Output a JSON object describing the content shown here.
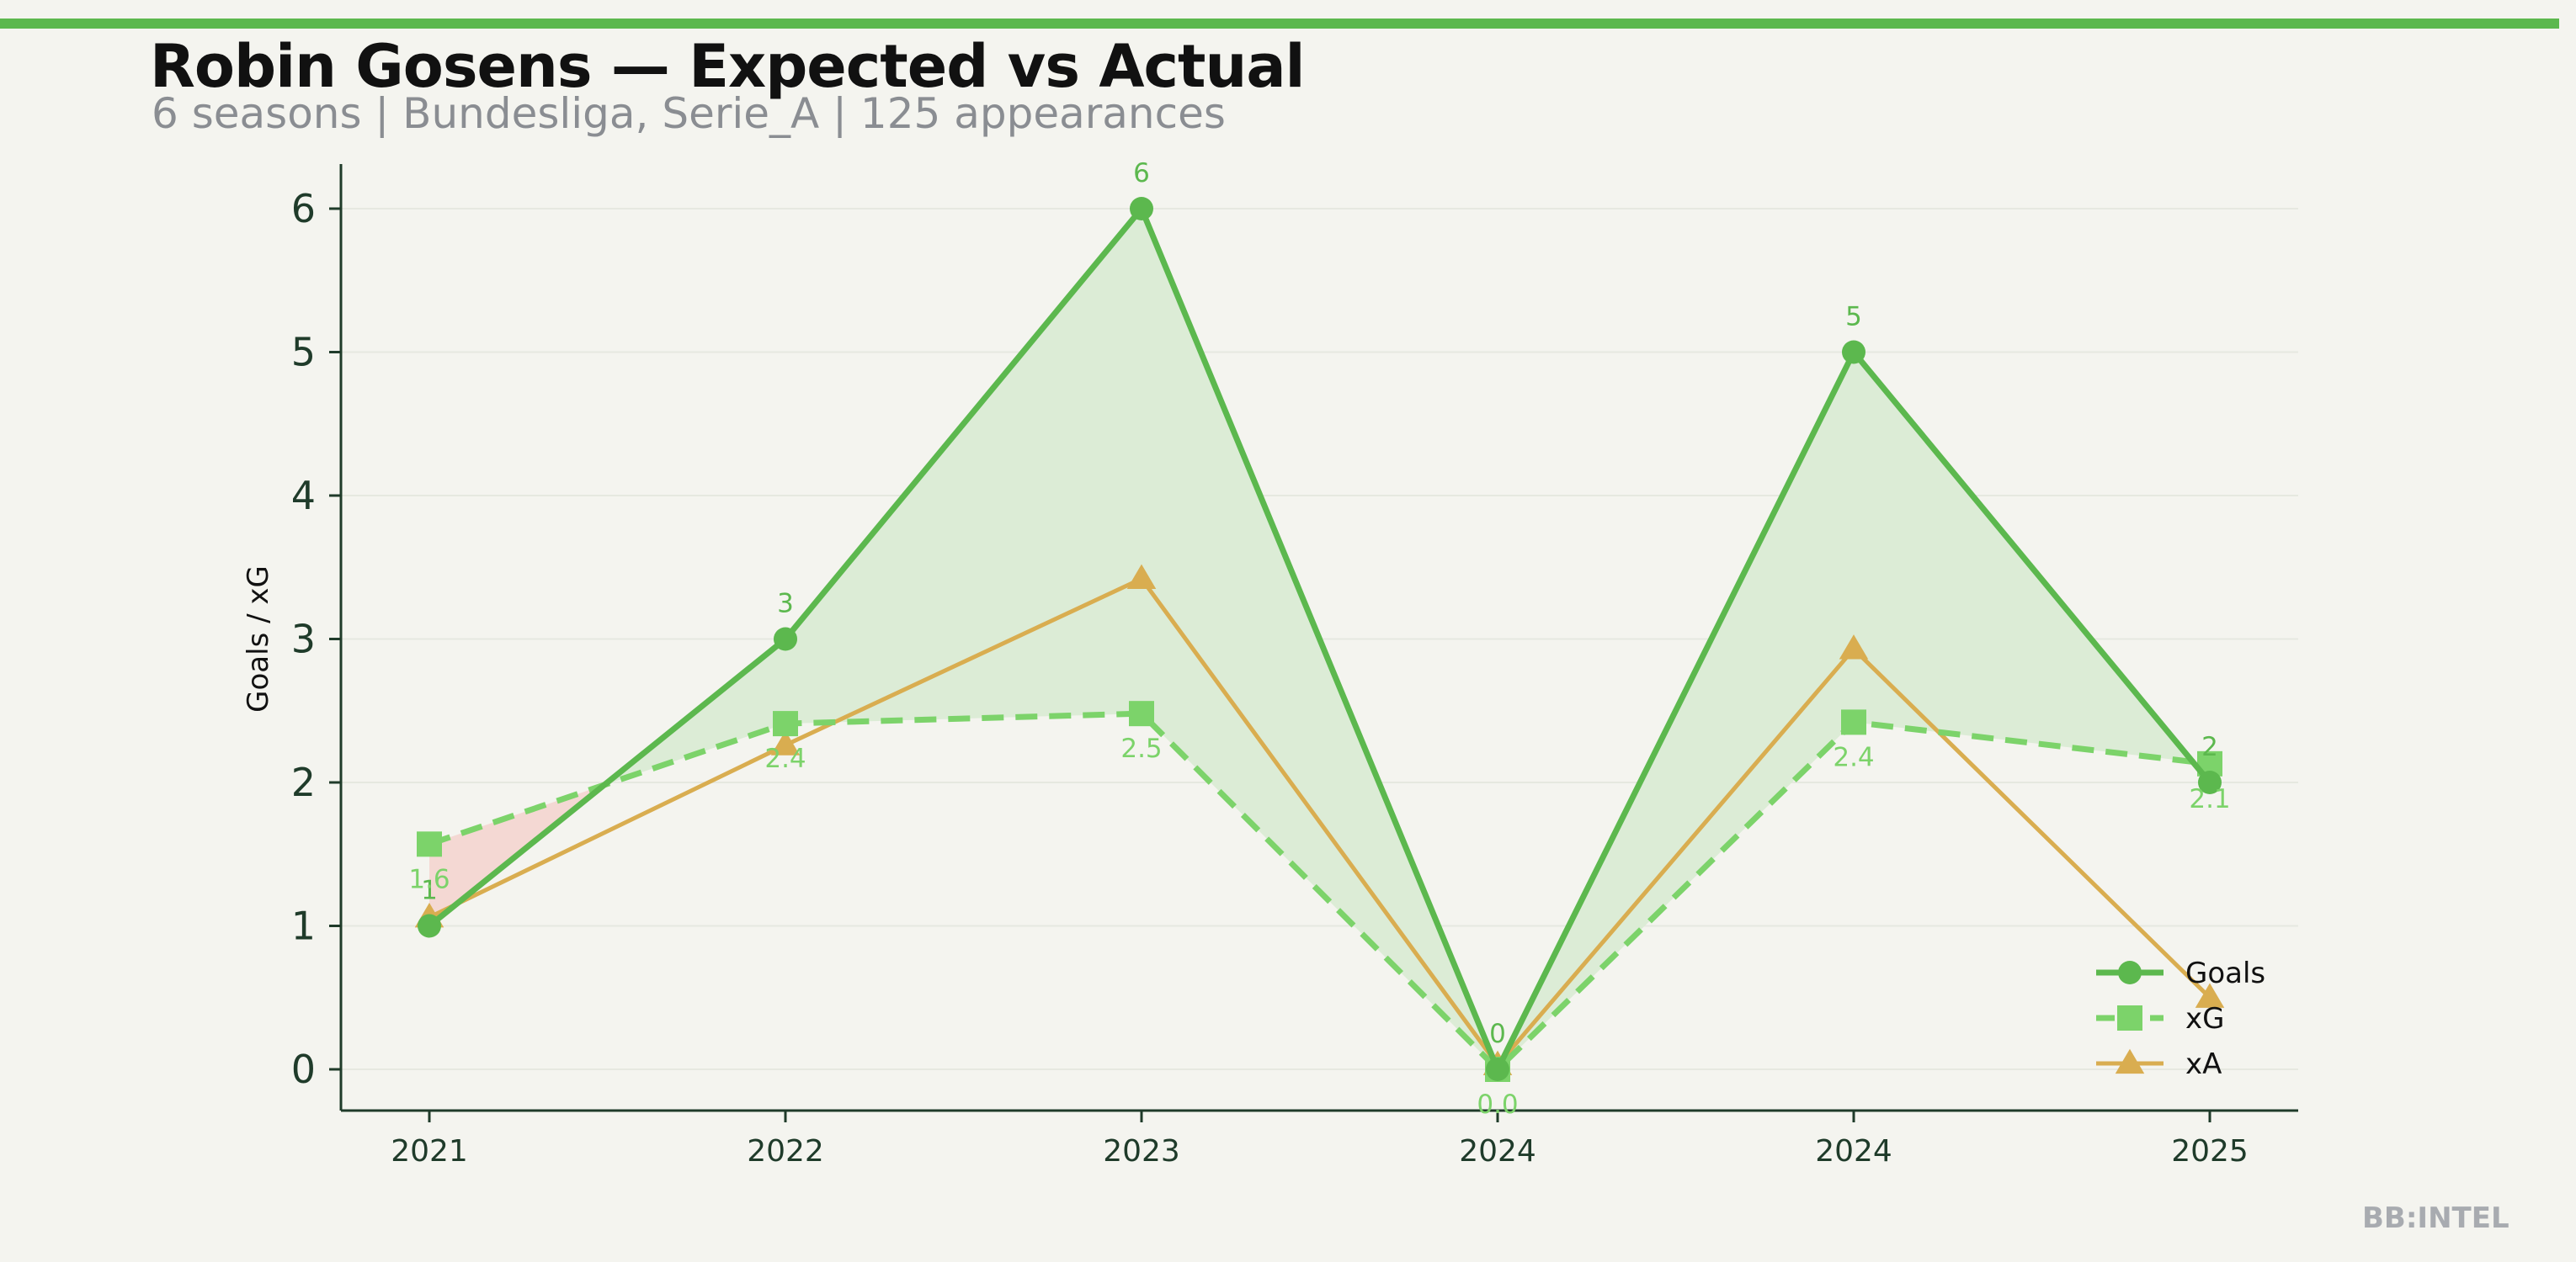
{
  "title": "Robin Gosens — Expected vs Actual",
  "subtitle": "6 seasons | Bundesliga, Serie_A | 125 appearances",
  "watermark": "BB:INTEL",
  "colors": {
    "background": "#f4f4ef",
    "accent": "#5cb84e",
    "goals": "#5cb84e",
    "xg": "#7cd36a",
    "xa": "#d9ad50",
    "overperform_fill": "#dcecd6",
    "underperform_fill": "#f4d8d3",
    "axis": "#1f3b2a"
  },
  "chart_data": {
    "type": "line",
    "categories": [
      "2021",
      "2022",
      "2023",
      "2024",
      "2024",
      "2025"
    ],
    "ylabel": "Goals / xG",
    "xlabel": "",
    "ylim": [
      -0.3,
      6.3
    ],
    "yticks": [
      0,
      1,
      2,
      3,
      4,
      5,
      6
    ],
    "grid": true,
    "legend_position": "bottom-right",
    "series": [
      {
        "name": "Goals",
        "values": [
          1,
          3,
          6,
          0,
          5,
          2
        ],
        "labels": [
          "1",
          "3",
          "6",
          "0",
          "5",
          "2"
        ],
        "marker": "circle",
        "style": "solid"
      },
      {
        "name": "xG",
        "values": [
          1.57,
          2.41,
          2.48,
          0.0,
          2.42,
          2.13
        ],
        "labels": [
          "1.6",
          "2.4",
          "2.5",
          "0.0",
          "2.4",
          "2.1"
        ],
        "marker": "square",
        "style": "dashed"
      },
      {
        "name": "xA",
        "values": [
          1.06,
          2.26,
          3.42,
          0.03,
          2.93,
          0.5
        ],
        "labels": [],
        "marker": "triangle",
        "style": "solid"
      }
    ]
  }
}
